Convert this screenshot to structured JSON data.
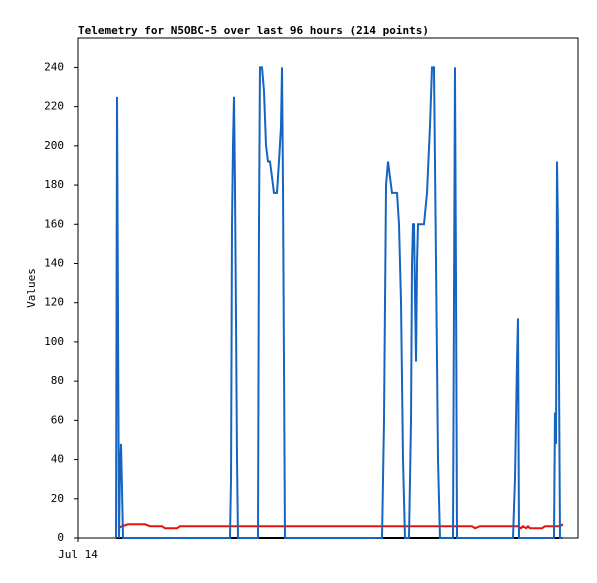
{
  "chart_data": {
    "type": "line",
    "title": "Telemetry for N5OBC-5 over last 96 hours (214 points)",
    "y_label": "Values",
    "xlim": [
      0,
      96
    ],
    "xticks": [
      {
        "value": 0,
        "label": "Jul 14"
      }
    ],
    "ylim": [
      0,
      255
    ],
    "yticks": [
      0,
      20,
      40,
      60,
      80,
      100,
      120,
      140,
      160,
      180,
      200,
      220,
      240
    ],
    "grid": false,
    "series": [
      {
        "color": "#000000",
        "x": [
          7.3,
          93.12
        ],
        "values": [
          0,
          0
        ]
      },
      {
        "color": "#e8120c",
        "x": [
          7.68,
          8.45,
          9.6,
          12.86,
          13.82,
          16.13,
          16.7,
          19.01,
          19.58,
          75.65,
          76.22,
          77.18,
          84.48,
          85.06,
          85.44,
          86.02,
          86.4,
          86.78,
          89.09,
          89.66,
          92.54,
          93.12
        ],
        "values": [
          5,
          6,
          7,
          7,
          6,
          6,
          5,
          5,
          6,
          6,
          5,
          6,
          6,
          5,
          6,
          5,
          6,
          5,
          5,
          6,
          6,
          7
        ]
      },
      {
        "color": "#1565c0",
        "x": [
          7.3,
          7.49,
          7.68,
          7.87,
          8.06,
          8.26,
          8.45,
          8.64,
          29.18,
          29.38,
          29.57,
          29.76,
          29.95,
          30.14,
          30.34,
          30.53,
          30.72,
          34.56,
          34.75,
          34.94,
          35.33,
          35.71,
          36.1,
          36.48,
          36.86,
          37.25,
          37.63,
          38.21,
          38.59,
          38.98,
          39.17,
          39.36,
          39.74,
          58.37,
          58.75,
          59.14,
          59.52,
          59.9,
          60.29,
          61.25,
          61.63,
          62.02,
          62.4,
          62.78,
          63.55,
          63.94,
          64.13,
          64.32,
          64.51,
          64.9,
          65.09,
          65.28,
          66.43,
          67.01,
          67.58,
          67.97,
          68.35,
          68.74,
          69.12,
          69.5,
          72.0,
          72.19,
          72.38,
          72.58,
          72.77,
          83.52,
          83.9,
          84.29,
          84.48,
          84.67,
          91.39,
          91.58,
          91.78,
          91.97,
          92.16,
          92.35,
          92.54,
          93.12
        ],
        "values": [
          0,
          225,
          112,
          0,
          36,
          48,
          25,
          0,
          0,
          30,
          160,
          200,
          225,
          180,
          110,
          40,
          0,
          0,
          160,
          240,
          240,
          228,
          200,
          192,
          192,
          184,
          176,
          176,
          192,
          210,
          240,
          180,
          0,
          0,
          60,
          180,
          192,
          184,
          176,
          176,
          160,
          120,
          40,
          0,
          0,
          60,
          140,
          160,
          160,
          90,
          140,
          160,
          160,
          176,
          210,
          240,
          240,
          140,
          40,
          0,
          0,
          120,
          240,
          128,
          0,
          0,
          30,
          90,
          112,
          0,
          0,
          64,
          48,
          192,
          156,
          84,
          0,
          0
        ]
      }
    ]
  }
}
